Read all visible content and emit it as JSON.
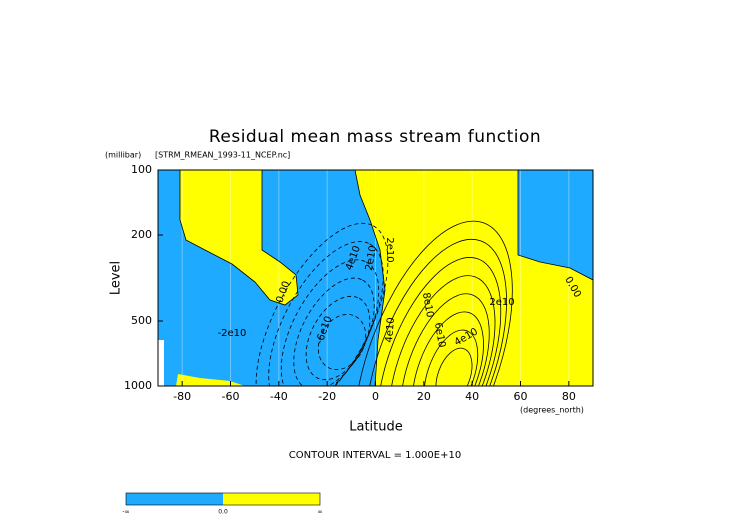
{
  "chart_data": {
    "type": "contour",
    "title": "Residual mean mass stream function",
    "subtitle": "[STRM_RMEAN_1993-11_NCEP.nc]",
    "x_label": "Latitude",
    "x_unit": "(degrees_north)",
    "y_label": "Level",
    "y_unit": "(millibar)",
    "xlim": [
      -90,
      90
    ],
    "xticks": [
      -80,
      -60,
      -40,
      -20,
      0,
      20,
      40,
      60,
      80
    ],
    "ylim": [
      1000,
      100
    ],
    "yscale": "log",
    "yticks": [
      100,
      200,
      500,
      1000
    ],
    "contour_interval": {
      "value": 10000000000,
      "label": "CONTOUR INTERVAL = 1.000E+10"
    },
    "contour_levels": [
      -60000000000,
      -50000000000,
      -40000000000,
      -30000000000,
      -20000000000,
      -10000000000,
      0,
      10000000000,
      20000000000,
      30000000000,
      40000000000,
      50000000000,
      60000000000,
      70000000000,
      80000000000
    ],
    "contour_labels": [
      {
        "value": 0,
        "label": "0.00"
      },
      {
        "value": -20000000000,
        "label": "-2e10"
      },
      {
        "value": 40000000000,
        "label": "4e10"
      },
      {
        "value": 20000000000,
        "label": "2e10"
      },
      {
        "value": 20000000000,
        "label": "2e10"
      },
      {
        "value": 80000000000,
        "label": "8e10"
      },
      {
        "value": 20000000000,
        "label": "2e10"
      },
      {
        "value": 60000000000,
        "label": "6e10"
      },
      {
        "value": 40000000000,
        "label": "4e10"
      },
      {
        "value": 40000000000,
        "label": "4e10"
      },
      {
        "value": -60000000000,
        "label": "-6e10"
      },
      {
        "value": 0,
        "label": "0.00"
      }
    ],
    "colors": {
      "negative": "#1eaaff",
      "positive": "#ffff00",
      "line": "#000000"
    },
    "colorbar_labels": [
      "-∞",
      {
        "value": 0,
        "label": "0.0"
      },
      "∞"
    ]
  }
}
